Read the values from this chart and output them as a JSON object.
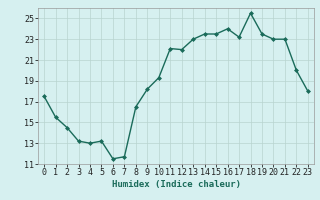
{
  "x": [
    0,
    1,
    2,
    3,
    4,
    5,
    6,
    7,
    8,
    9,
    10,
    11,
    12,
    13,
    14,
    15,
    16,
    17,
    18,
    19,
    20,
    21,
    22,
    23
  ],
  "y": [
    17.5,
    15.5,
    14.5,
    13.2,
    13.0,
    13.2,
    11.5,
    11.7,
    16.5,
    18.2,
    19.3,
    22.1,
    22.0,
    23.0,
    23.5,
    23.5,
    24.0,
    23.2,
    25.5,
    23.5,
    23.0,
    23.0,
    20.0,
    18.0
  ],
  "line_color": "#1a6b5a",
  "marker": "D",
  "marker_size": 2,
  "bg_color": "#d6f0f0",
  "grid_color": "#b8d4d0",
  "xlabel": "Humidex (Indice chaleur)",
  "xlim": [
    -0.5,
    23.5
  ],
  "ylim": [
    11,
    26
  ],
  "yticks": [
    11,
    13,
    15,
    17,
    19,
    21,
    23,
    25
  ],
  "xticks": [
    0,
    1,
    2,
    3,
    4,
    5,
    6,
    7,
    8,
    9,
    10,
    11,
    12,
    13,
    14,
    15,
    16,
    17,
    18,
    19,
    20,
    21,
    22,
    23
  ],
  "xlabel_fontsize": 6.5,
  "tick_fontsize": 6,
  "linewidth": 1.0
}
